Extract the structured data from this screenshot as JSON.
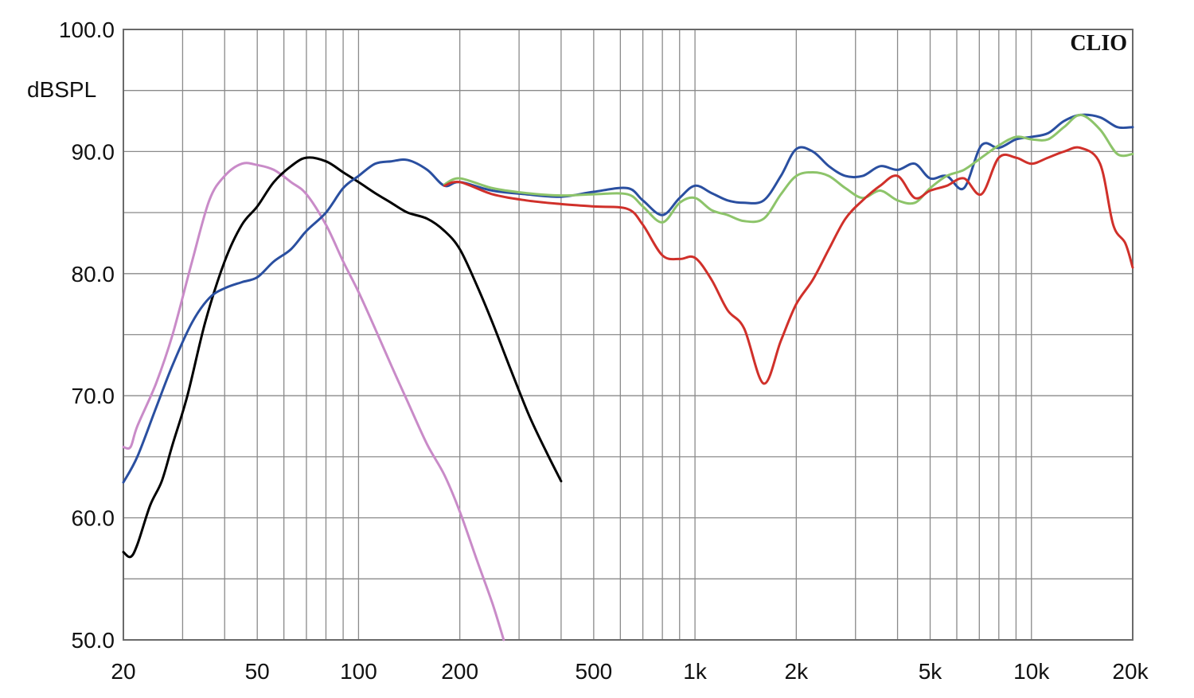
{
  "chart_data": {
    "type": "line",
    "title": "",
    "xlabel": "",
    "ylabel": "dBSPL",
    "brand": "CLIO",
    "x_scale": "log",
    "xlim": [
      20,
      20000
    ],
    "ylim": [
      50,
      100
    ],
    "grid": true,
    "y_ticks": [
      {
        "value": 100,
        "label": "100.0"
      },
      {
        "value": 90,
        "label": "90.0"
      },
      {
        "value": 80,
        "label": "80.0"
      },
      {
        "value": 70,
        "label": "70.0"
      },
      {
        "value": 60,
        "label": "60.0"
      },
      {
        "value": 50,
        "label": "50.0"
      }
    ],
    "y_minor_step": 5,
    "x_ticks": [
      {
        "value": 20,
        "label": "20"
      },
      {
        "value": 50,
        "label": "50"
      },
      {
        "value": 100,
        "label": "100"
      },
      {
        "value": 200,
        "label": "200"
      },
      {
        "value": 500,
        "label": "500"
      },
      {
        "value": 1000,
        "label": "1k"
      },
      {
        "value": 2000,
        "label": "2k"
      },
      {
        "value": 5000,
        "label": "5k"
      },
      {
        "value": 10000,
        "label": "10k"
      },
      {
        "value": 20000,
        "label": "20k"
      }
    ],
    "series": [
      {
        "color": "#c98bc8",
        "points": [
          [
            20,
            65.8
          ],
          [
            21,
            65.8
          ],
          [
            22,
            67.5
          ],
          [
            25,
            71
          ],
          [
            28,
            75
          ],
          [
            32,
            81
          ],
          [
            36,
            86
          ],
          [
            40,
            88
          ],
          [
            45,
            89
          ],
          [
            50,
            88.9
          ],
          [
            56,
            88.5
          ],
          [
            63,
            87.5
          ],
          [
            70,
            86.5
          ],
          [
            80,
            84
          ],
          [
            90,
            81
          ],
          [
            100,
            78.5
          ],
          [
            112,
            75.5
          ],
          [
            125,
            72.5
          ],
          [
            140,
            69.5
          ],
          [
            160,
            66
          ],
          [
            180,
            63.5
          ],
          [
            200,
            60.5
          ],
          [
            225,
            56.5
          ],
          [
            250,
            53
          ],
          [
            270,
            50
          ]
        ]
      },
      {
        "color": "#000000",
        "points": [
          [
            20,
            57.2
          ],
          [
            21,
            56.8
          ],
          [
            22,
            57.8
          ],
          [
            24,
            61
          ],
          [
            26,
            63
          ],
          [
            28,
            66
          ],
          [
            31,
            70
          ],
          [
            35,
            76
          ],
          [
            40,
            81
          ],
          [
            45,
            84
          ],
          [
            50,
            85.5
          ],
          [
            56,
            87.5
          ],
          [
            63,
            88.8
          ],
          [
            70,
            89.5
          ],
          [
            80,
            89.2
          ],
          [
            90,
            88.3
          ],
          [
            100,
            87.5
          ],
          [
            112,
            86.6
          ],
          [
            125,
            85.8
          ],
          [
            140,
            85
          ],
          [
            160,
            84.5
          ],
          [
            180,
            83.5
          ],
          [
            200,
            82
          ],
          [
            225,
            79
          ],
          [
            250,
            76
          ],
          [
            280,
            72.5
          ],
          [
            320,
            68.5
          ],
          [
            360,
            65.5
          ],
          [
            400,
            63
          ]
        ]
      },
      {
        "color": "#2a4fa0",
        "points": [
          [
            20,
            62.9
          ],
          [
            22,
            65
          ],
          [
            25,
            69
          ],
          [
            28,
            72.5
          ],
          [
            32,
            76
          ],
          [
            36,
            78
          ],
          [
            40,
            78.8
          ],
          [
            45,
            79.3
          ],
          [
            50,
            79.7
          ],
          [
            56,
            81
          ],
          [
            63,
            82
          ],
          [
            70,
            83.5
          ],
          [
            80,
            85
          ],
          [
            90,
            87
          ],
          [
            100,
            88
          ],
          [
            112,
            89
          ],
          [
            125,
            89.2
          ],
          [
            140,
            89.3
          ],
          [
            160,
            88.5
          ],
          [
            180,
            87.2
          ],
          [
            200,
            87.5
          ],
          [
            250,
            86.8
          ],
          [
            315,
            86.5
          ],
          [
            400,
            86.3
          ],
          [
            500,
            86.7
          ],
          [
            630,
            87
          ],
          [
            700,
            86
          ],
          [
            800,
            84.8
          ],
          [
            900,
            86.2
          ],
          [
            1000,
            87.2
          ],
          [
            1120,
            86.6
          ],
          [
            1250,
            86
          ],
          [
            1400,
            85.8
          ],
          [
            1600,
            86
          ],
          [
            1800,
            88
          ],
          [
            2000,
            90.2
          ],
          [
            2240,
            90
          ],
          [
            2500,
            88.8
          ],
          [
            2800,
            88
          ],
          [
            3150,
            88
          ],
          [
            3550,
            88.8
          ],
          [
            4000,
            88.5
          ],
          [
            4500,
            89
          ],
          [
            5000,
            87.8
          ],
          [
            5600,
            88
          ],
          [
            6300,
            87
          ],
          [
            7100,
            90.5
          ],
          [
            8000,
            90.3
          ],
          [
            9000,
            91
          ],
          [
            10000,
            91.2
          ],
          [
            11200,
            91.5
          ],
          [
            12500,
            92.5
          ],
          [
            14000,
            93
          ],
          [
            16000,
            92.8
          ],
          [
            18000,
            92
          ],
          [
            20000,
            92
          ]
        ]
      },
      {
        "color": "#8dc46a",
        "points": [
          [
            180,
            87.3
          ],
          [
            200,
            87.8
          ],
          [
            250,
            87
          ],
          [
            315,
            86.6
          ],
          [
            400,
            86.4
          ],
          [
            500,
            86.5
          ],
          [
            630,
            86.5
          ],
          [
            700,
            85.5
          ],
          [
            800,
            84.2
          ],
          [
            900,
            85.8
          ],
          [
            1000,
            86.2
          ],
          [
            1120,
            85.2
          ],
          [
            1250,
            84.8
          ],
          [
            1400,
            84.3
          ],
          [
            1600,
            84.5
          ],
          [
            1800,
            86.5
          ],
          [
            2000,
            88
          ],
          [
            2240,
            88.3
          ],
          [
            2500,
            88
          ],
          [
            2800,
            87
          ],
          [
            3150,
            86.2
          ],
          [
            3550,
            86.8
          ],
          [
            4000,
            86
          ],
          [
            4500,
            85.8
          ],
          [
            5000,
            87
          ],
          [
            5600,
            88
          ],
          [
            6300,
            88.5
          ],
          [
            7100,
            89.5
          ],
          [
            8000,
            90.5
          ],
          [
            9000,
            91.2
          ],
          [
            10000,
            91
          ],
          [
            11200,
            91
          ],
          [
            12500,
            92
          ],
          [
            14000,
            93
          ],
          [
            16000,
            91.8
          ],
          [
            18000,
            89.8
          ],
          [
            20000,
            89.8
          ]
        ]
      },
      {
        "color": "#d0302a",
        "points": [
          [
            180,
            87.2
          ],
          [
            200,
            87.5
          ],
          [
            250,
            86.5
          ],
          [
            315,
            86
          ],
          [
            400,
            85.7
          ],
          [
            500,
            85.5
          ],
          [
            630,
            85.3
          ],
          [
            700,
            84
          ],
          [
            800,
            81.5
          ],
          [
            900,
            81.2
          ],
          [
            1000,
            81.3
          ],
          [
            1120,
            79.5
          ],
          [
            1250,
            77
          ],
          [
            1400,
            75.5
          ],
          [
            1600,
            71
          ],
          [
            1800,
            74.5
          ],
          [
            2000,
            77.5
          ],
          [
            2240,
            79.5
          ],
          [
            2500,
            82
          ],
          [
            2800,
            84.5
          ],
          [
            3150,
            86
          ],
          [
            3550,
            87.2
          ],
          [
            4000,
            88
          ],
          [
            4500,
            86.2
          ],
          [
            5000,
            86.8
          ],
          [
            5600,
            87.2
          ],
          [
            6300,
            87.8
          ],
          [
            7100,
            86.5
          ],
          [
            8000,
            89.5
          ],
          [
            9000,
            89.5
          ],
          [
            10000,
            89
          ],
          [
            11200,
            89.5
          ],
          [
            12500,
            90
          ],
          [
            14000,
            90.3
          ],
          [
            16000,
            89
          ],
          [
            17500,
            84
          ],
          [
            19000,
            82.5
          ],
          [
            20000,
            80.5
          ]
        ]
      }
    ]
  }
}
